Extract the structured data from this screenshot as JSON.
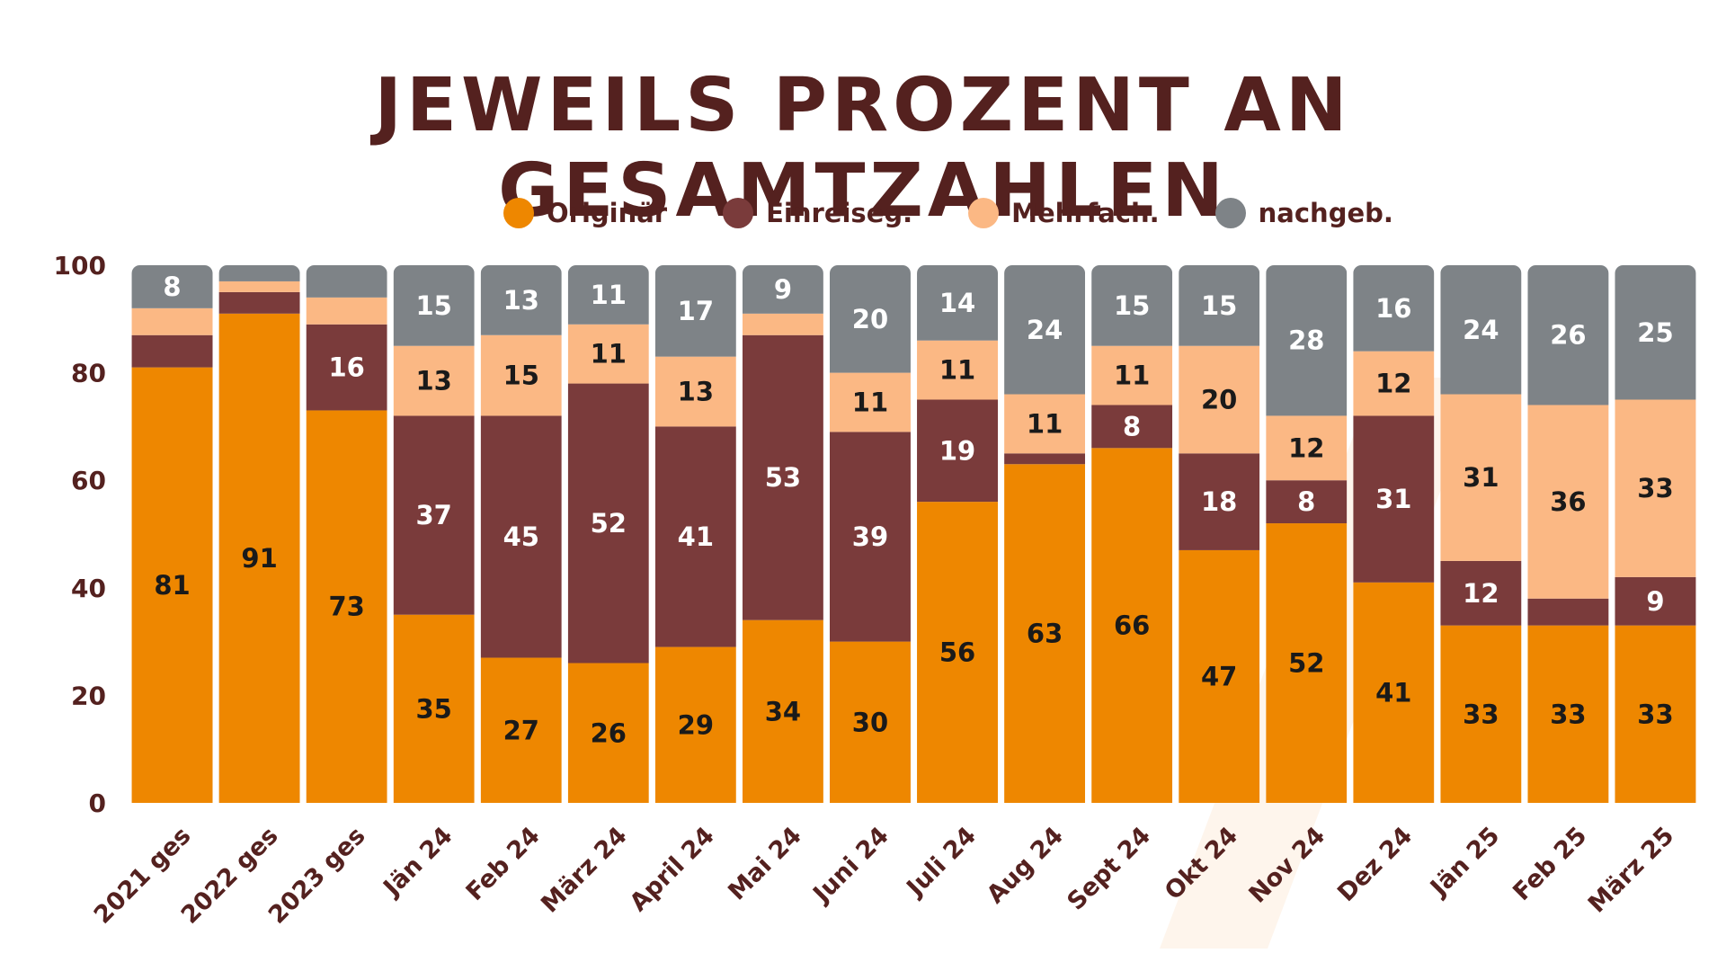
{
  "colors": {
    "text": "#54211f",
    "series": [
      "#ee8700",
      "#7a3b3b",
      "#fbb884",
      "#7e8387"
    ],
    "watermark": "#fdf1e4"
  },
  "chart_data": {
    "type": "bar",
    "stacked": true,
    "title": "JEWEILS PROZENT AN GESAMTZAHLEN",
    "xlabel": "",
    "ylabel": "",
    "ylim": [
      0,
      100
    ],
    "yticks": [
      0,
      20,
      40,
      60,
      80,
      100
    ],
    "grid": false,
    "legend_position": "top",
    "categories": [
      "2021 ges",
      "2022 ges",
      "2023 ges",
      "Jän 24",
      "Feb 24",
      "März 24",
      "April 24",
      "Mai 24",
      "Juni 24",
      "Juli 24",
      "Aug 24",
      "Sept 24",
      "Okt 24",
      "Nov 24",
      "Dez 24",
      "Jän 25",
      "Feb 25",
      "März 25"
    ],
    "series": [
      {
        "name": "Originär",
        "values": [
          81,
          91,
          73,
          35,
          27,
          26,
          29,
          34,
          30,
          56,
          63,
          66,
          47,
          52,
          41,
          33,
          33,
          33
        ]
      },
      {
        "name": "Einreiseg.",
        "values": [
          6,
          4,
          16,
          37,
          45,
          52,
          41,
          53,
          39,
          19,
          2,
          8,
          18,
          8,
          31,
          12,
          5,
          9
        ]
      },
      {
        "name": "Mehrfach.",
        "values": [
          5,
          2,
          5,
          13,
          15,
          11,
          13,
          4,
          11,
          11,
          11,
          11,
          20,
          12,
          12,
          31,
          36,
          33
        ]
      },
      {
        "name": "nachgeb.",
        "values": [
          8,
          3,
          6,
          15,
          13,
          11,
          17,
          9,
          20,
          14,
          24,
          15,
          15,
          28,
          16,
          24,
          26,
          25
        ]
      }
    ],
    "data_labels": [
      [
        "81",
        "91",
        "73",
        "35",
        "27",
        "26",
        "29",
        "34",
        "30",
        "56",
        "63",
        "66",
        "47",
        "52",
        "41",
        "33",
        "33",
        "33"
      ],
      [
        "",
        "",
        "16",
        "37",
        "45",
        "52",
        "41",
        "53",
        "39",
        "19",
        "",
        "8",
        "18",
        "8",
        "31",
        "12",
        "",
        "9"
      ],
      [
        "",
        "",
        "",
        "13",
        "15",
        "11",
        "13",
        "",
        "11",
        "11",
        "11",
        "11",
        "20",
        "12",
        "12",
        "31",
        "36",
        "33"
      ],
      [
        "8",
        "",
        "",
        "15",
        "13",
        "11",
        "17",
        "9",
        "20",
        "14",
        "24",
        "15",
        "15",
        "28",
        "16",
        "24",
        "26",
        "25"
      ]
    ]
  }
}
